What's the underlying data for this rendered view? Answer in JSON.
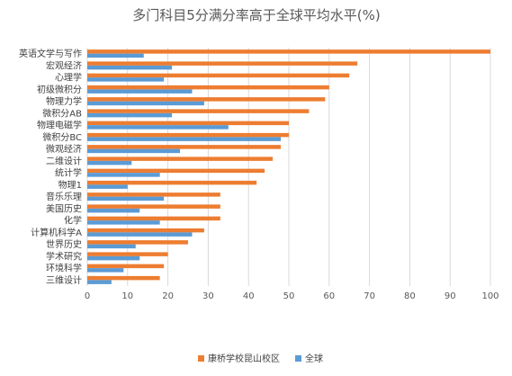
{
  "chart_data": {
    "type": "bar",
    "orientation": "horizontal",
    "title": "多门科目5分满分率高于全球平均水平(%)",
    "categories": [
      "英语文学与写作",
      "宏观经济",
      "心理学",
      "初级微积分",
      "物理力学",
      "微积分AB",
      "物理电磁学",
      "微积分BC",
      "微观经济",
      "二维设计",
      "统计学",
      "物理1",
      "音乐乐理",
      "美国历史",
      "化学",
      "计算机科学A",
      "世界历史",
      "学术研究",
      "环境科学",
      "三维设计"
    ],
    "series": [
      {
        "name": "康桥学校昆山校区",
        "color": "#ED7D31",
        "values": [
          100,
          67,
          65,
          60,
          59,
          55,
          50,
          50,
          48,
          46,
          44,
          42,
          33,
          33,
          33,
          29,
          25,
          20,
          19,
          18
        ]
      },
      {
        "name": "全球",
        "color": "#5B9BD5",
        "values": [
          14,
          21,
          19,
          26,
          29,
          21,
          35,
          48,
          23,
          11,
          18,
          10,
          19,
          13,
          18,
          26,
          12,
          13,
          9,
          6
        ]
      }
    ],
    "xlim": [
      0,
      100
    ],
    "xticks": [
      0,
      10,
      20,
      30,
      40,
      50,
      60,
      70,
      80,
      90,
      100
    ],
    "grid": true,
    "legend_position": "bottom"
  }
}
